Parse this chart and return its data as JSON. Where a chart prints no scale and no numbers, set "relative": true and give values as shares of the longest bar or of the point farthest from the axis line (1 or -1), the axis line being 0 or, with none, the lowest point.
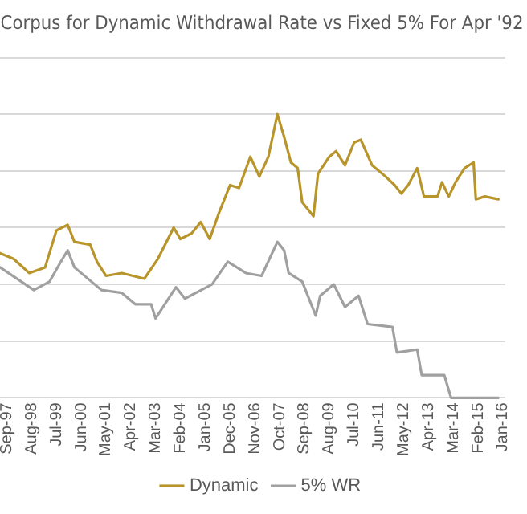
{
  "chart_data": {
    "type": "line",
    "title": "Corpus for Dynamic Withdrawal Rate vs Fixed 5% For Apr '92",
    "relative": true,
    "grid": "y",
    "legend": "bottom",
    "marker": "none",
    "line_style": "solid",
    "xlim": [
      "1997-06",
      "2016-02"
    ],
    "xticks": [
      {
        "value": "1997-09",
        "label": "Sep-97"
      },
      {
        "value": "1998-08",
        "label": "Aug-98"
      },
      {
        "value": "1999-07",
        "label": "Jul-99"
      },
      {
        "value": "2000-06",
        "label": "Jun-00"
      },
      {
        "value": "2001-05",
        "label": "May-01"
      },
      {
        "value": "2002-04",
        "label": "Apr-02"
      },
      {
        "value": "2003-03",
        "label": "Mar-03"
      },
      {
        "value": "2004-02",
        "label": "Feb-04"
      },
      {
        "value": "2005-01",
        "label": "Jan-05"
      },
      {
        "value": "2005-12",
        "label": "Dec-05"
      },
      {
        "value": "2006-11",
        "label": "Nov-06"
      },
      {
        "value": "2007-10",
        "label": "Oct-07"
      },
      {
        "value": "2008-09",
        "label": "Sep-08"
      },
      {
        "value": "2009-08",
        "label": "Aug-09"
      },
      {
        "value": "2010-07",
        "label": "Jul-10"
      },
      {
        "value": "2011-06",
        "label": "Jun-11"
      },
      {
        "value": "2012-05",
        "label": "May-12"
      },
      {
        "value": "2013-04",
        "label": "Apr-13"
      },
      {
        "value": "2014-03",
        "label": "Mar-14"
      },
      {
        "value": "2015-02",
        "label": "Feb-15"
      },
      {
        "value": "2016-01",
        "label": "Jan-16"
      }
    ],
    "series": [
      {
        "name": "Dynamic",
        "color": "#b8952a",
        "x": [
          "1997-06",
          "1997-12",
          "1998-07",
          "1999-02",
          "1999-07",
          "1999-12",
          "2000-03",
          "2000-10",
          "2001-01",
          "2001-05",
          "2001-12",
          "2002-10",
          "2003-04",
          "2003-11",
          "2004-02",
          "2004-07",
          "2004-11",
          "2005-03",
          "2005-07",
          "2005-12",
          "2006-04",
          "2006-09",
          "2007-01",
          "2007-05",
          "2007-09",
          "2007-12",
          "2008-03",
          "2008-06",
          "2008-08",
          "2009-01",
          "2009-03",
          "2009-08",
          "2009-11",
          "2010-03",
          "2010-07",
          "2010-10",
          "2011-03",
          "2011-09",
          "2012-01",
          "2012-04",
          "2012-07",
          "2012-11",
          "2013-02",
          "2013-08",
          "2013-10",
          "2014-01",
          "2014-04",
          "2014-08",
          "2014-12",
          "2015-01",
          "2015-05",
          "2015-11"
        ],
        "values": [
          0.51,
          0.49,
          0.44,
          0.46,
          0.59,
          0.61,
          0.55,
          0.54,
          0.48,
          0.43,
          0.44,
          0.42,
          0.49,
          0.6,
          0.56,
          0.58,
          0.62,
          0.56,
          0.65,
          0.75,
          0.74,
          0.85,
          0.78,
          0.85,
          1,
          0.92,
          0.83,
          0.81,
          0.69,
          0.64,
          0.79,
          0.85,
          0.87,
          0.82,
          0.9,
          0.91,
          0.82,
          0.78,
          0.75,
          0.72,
          0.75,
          0.81,
          0.71,
          0.71,
          0.76,
          0.71,
          0.76,
          0.81,
          0.83,
          0.7,
          0.71,
          0.7
        ]
      },
      {
        "name": "5% WR",
        "color": "#a0a0a0",
        "x": [
          "1997-06",
          "1998-09",
          "1999-04",
          "1999-09",
          "1999-12",
          "2000-03",
          "2001-03",
          "2001-12",
          "2002-06",
          "2003-01",
          "2003-03",
          "2003-12",
          "2004-04",
          "2005-04",
          "2005-11",
          "2006-07",
          "2007-02",
          "2007-09",
          "2007-12",
          "2008-02",
          "2008-08",
          "2009-02",
          "2009-04",
          "2009-10",
          "2010-03",
          "2010-09",
          "2011-01",
          "2011-12",
          "2012-02",
          "2012-11",
          "2013-01",
          "2013-11",
          "2014-02",
          "2015-11"
        ],
        "values": [
          0.46,
          0.38,
          0.41,
          0.48,
          0.52,
          0.46,
          0.38,
          0.37,
          0.33,
          0.33,
          0.28,
          0.39,
          0.35,
          0.4,
          0.48,
          0.44,
          0.43,
          0.55,
          0.52,
          0.44,
          0.41,
          0.29,
          0.36,
          0.4,
          0.32,
          0.36,
          0.26,
          0.25,
          0.16,
          0.17,
          0.08,
          0.08,
          0,
          0
        ]
      }
    ]
  }
}
